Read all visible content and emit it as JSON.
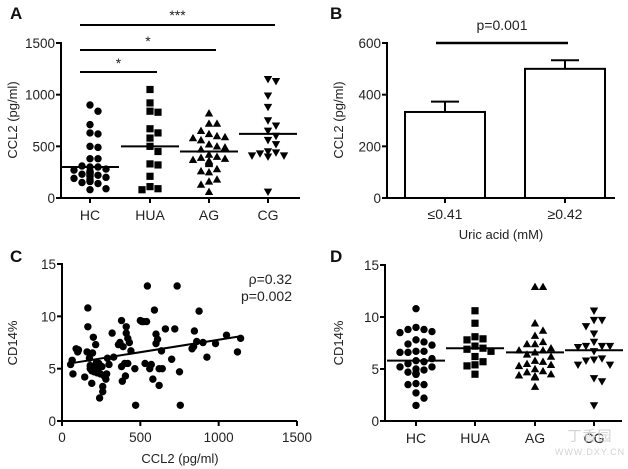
{
  "chart_data": [
    {
      "panel": "A",
      "type": "scatter",
      "subtype": "dot-plot",
      "ylabel": "CCL2 (pg/ml)",
      "xlabel": "",
      "ylim": [
        0,
        1500
      ],
      "yticks": [
        0,
        500,
        1000,
        1500
      ],
      "categories": [
        "HC",
        "HUA",
        "AG",
        "CG"
      ],
      "markers": [
        "circle",
        "square",
        "triangle-up",
        "triangle-down"
      ],
      "series": [
        {
          "name": "HC",
          "mean": 300,
          "values": [
            900,
            840,
            710,
            630,
            620,
            500,
            490,
            380,
            380,
            300,
            300,
            270,
            250,
            240,
            230,
            220,
            280,
            260,
            230,
            210,
            200,
            190,
            180,
            170,
            160,
            160,
            150,
            140,
            240,
            210,
            260,
            310,
            80,
            90
          ]
        },
        {
          "name": "HUA",
          "mean": 500,
          "values": [
            1050,
            920,
            830,
            840,
            670,
            630,
            580,
            500,
            450,
            320,
            330,
            210,
            110,
            90,
            80
          ]
        },
        {
          "name": "AG",
          "mean": 450,
          "values": [
            820,
            720,
            720,
            650,
            620,
            600,
            590,
            580,
            560,
            520,
            500,
            490,
            470,
            420,
            400,
            390,
            380,
            370,
            360,
            350,
            340,
            330,
            280,
            260,
            250,
            180,
            160,
            130,
            60
          ]
        },
        {
          "name": "CG",
          "mean": 620,
          "values": [
            1150,
            1130,
            990,
            880,
            750,
            700,
            650,
            600,
            560,
            520,
            450,
            430,
            410,
            410,
            400,
            440,
            60
          ]
        }
      ],
      "significance": [
        {
          "from": "HC",
          "to": "HUA",
          "label": "*"
        },
        {
          "from": "HC",
          "to": "AG",
          "label": "*"
        },
        {
          "from": "HC",
          "to": "CG",
          "label": "***"
        }
      ]
    },
    {
      "panel": "B",
      "type": "bar",
      "ylabel": "CCL2 (pg/ml)",
      "xlabel": "Uric acid (mM)",
      "ylim": [
        0,
        600
      ],
      "yticks": [
        0,
        200,
        400,
        600
      ],
      "categories": [
        "≤0.41",
        "≥0.42"
      ],
      "values": [
        333,
        500
      ],
      "error_upper": [
        373,
        533
      ],
      "annotation": "p=0.001"
    },
    {
      "panel": "C",
      "type": "scatter",
      "ylabel": "CD14%",
      "xlabel": "CCL2 (pg/ml)",
      "xlim": [
        0,
        1500
      ],
      "ylim": [
        0,
        15
      ],
      "xticks": [
        0,
        500,
        1000,
        1500
      ],
      "yticks": [
        0,
        5,
        10,
        15
      ],
      "annotations": [
        "ρ=0.32",
        "p=0.002"
      ],
      "regression": {
        "x": [
          50,
          1140
        ],
        "y": [
          5.5,
          8.1
        ]
      },
      "points": [
        [
          55,
          5.4
        ],
        [
          65,
          5.8
        ],
        [
          70,
          4.5
        ],
        [
          90,
          6.9
        ],
        [
          100,
          6.6
        ],
        [
          105,
          6.8
        ],
        [
          145,
          4.2
        ],
        [
          160,
          6.6
        ],
        [
          165,
          10.8
        ],
        [
          165,
          9.0
        ],
        [
          175,
          6.0
        ],
        [
          180,
          5.0
        ],
        [
          180,
          5.3
        ],
        [
          190,
          4.8
        ],
        [
          190,
          3.6
        ],
        [
          195,
          6.5
        ],
        [
          200,
          8.0
        ],
        [
          200,
          5.2
        ],
        [
          205,
          4.7
        ],
        [
          215,
          7.3
        ],
        [
          220,
          5.6
        ],
        [
          225,
          4.6
        ],
        [
          230,
          5.0
        ],
        [
          235,
          5.5
        ],
        [
          240,
          2.2
        ],
        [
          245,
          4.5
        ],
        [
          255,
          5.2
        ],
        [
          260,
          3.3
        ],
        [
          260,
          2.8
        ],
        [
          270,
          4.3
        ],
        [
          280,
          4.0
        ],
        [
          285,
          4.5
        ],
        [
          290,
          6.0
        ],
        [
          300,
          5.4
        ],
        [
          320,
          8.4
        ],
        [
          330,
          6.1
        ],
        [
          360,
          7.3
        ],
        [
          370,
          7.5
        ],
        [
          380,
          9.6
        ],
        [
          380,
          5.2
        ],
        [
          385,
          3.8
        ],
        [
          390,
          7.1
        ],
        [
          400,
          5.5
        ],
        [
          405,
          4.3
        ],
        [
          410,
          9.0
        ],
        [
          410,
          8.4
        ],
        [
          420,
          7.9
        ],
        [
          420,
          5.5
        ],
        [
          430,
          7.5
        ],
        [
          440,
          6.7
        ],
        [
          465,
          5.0
        ],
        [
          470,
          1.5
        ],
        [
          500,
          9.6
        ],
        [
          510,
          9.5
        ],
        [
          520,
          9.5
        ],
        [
          530,
          5.5
        ],
        [
          540,
          9.5
        ],
        [
          545,
          12.9
        ],
        [
          560,
          5.0
        ],
        [
          570,
          5.4
        ],
        [
          580,
          4.0
        ],
        [
          590,
          10.6
        ],
        [
          600,
          8.3
        ],
        [
          600,
          7.4
        ],
        [
          610,
          7.8
        ],
        [
          620,
          5.0
        ],
        [
          620,
          3.4
        ],
        [
          635,
          6.7
        ],
        [
          640,
          5.0
        ],
        [
          660,
          8.8
        ],
        [
          700,
          5.9
        ],
        [
          720,
          8.8
        ],
        [
          735,
          12.9
        ],
        [
          750,
          4.7
        ],
        [
          755,
          1.5
        ],
        [
          830,
          6.9
        ],
        [
          840,
          7.1
        ],
        [
          845,
          8.6
        ],
        [
          860,
          7.6
        ],
        [
          875,
          10.5
        ],
        [
          900,
          7.5
        ],
        [
          925,
          6.1
        ],
        [
          980,
          7.4
        ],
        [
          1050,
          8.2
        ],
        [
          1120,
          6.6
        ],
        [
          1140,
          7.9
        ]
      ]
    },
    {
      "panel": "D",
      "type": "scatter",
      "subtype": "dot-plot",
      "ylabel": "CD14%",
      "xlabel": "",
      "ylim": [
        0,
        15
      ],
      "yticks": [
        0,
        5,
        10,
        15
      ],
      "categories": [
        "HC",
        "HUA",
        "AG",
        "CG"
      ],
      "markers": [
        "circle",
        "square",
        "triangle-up",
        "triangle-down"
      ],
      "series": [
        {
          "name": "HC",
          "mean": 5.8,
          "values": [
            10.8,
            9.0,
            8.8,
            8.5,
            8.6,
            8.8,
            7.8,
            7.6,
            7.3,
            7.4,
            6.7,
            6.7,
            6.6,
            6.6,
            6.0,
            5.8,
            5.7,
            5.5,
            5.2,
            5.2,
            5.0,
            4.9,
            4.7,
            4.6,
            4.5,
            4.6,
            4.5,
            4.5,
            3.5,
            3.6,
            3.5,
            2.7,
            2.2,
            1.5
          ]
        },
        {
          "name": "HUA",
          "mean": 7.0,
          "values": [
            10.6,
            9.4,
            8.1,
            7.9,
            7.8,
            7.2,
            7.0,
            6.9,
            6.7,
            6.2,
            5.7,
            5.4,
            5.3,
            4.5
          ]
        },
        {
          "name": "AG",
          "mean": 6.6,
          "values": [
            12.9,
            12.9,
            9.4,
            8.7,
            8.2,
            7.6,
            7.4,
            7.4,
            7.0,
            6.8,
            6.8,
            6.6,
            6.4,
            6.2,
            5.8,
            5.7,
            5.5,
            5.4,
            5.3,
            5.0,
            4.8,
            4.7,
            4.5,
            4.4,
            4.3,
            4.3,
            4.2,
            4.2,
            3.3
          ]
        },
        {
          "name": "CG",
          "mean": 6.8,
          "values": [
            10.6,
            9.7,
            9.7,
            9.1,
            8.4,
            7.6,
            7.2,
            7.2,
            7.1,
            7.2,
            6.7,
            6.0,
            5.9,
            5.8,
            5.4,
            5.4,
            4.1,
            3.8,
            1.5
          ]
        }
      ]
    }
  ],
  "watermark": {
    "text": "丁香园",
    "url_text": "WWW.DXY.CN"
  }
}
